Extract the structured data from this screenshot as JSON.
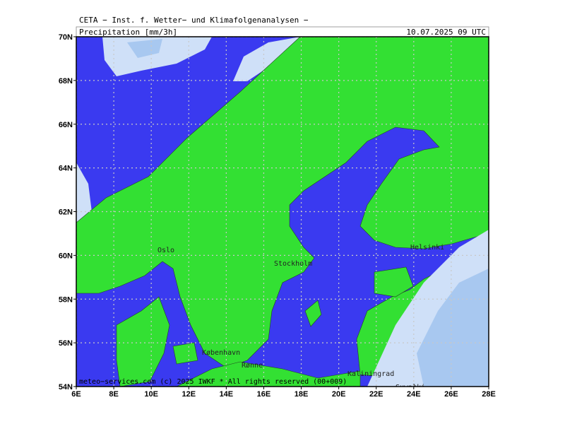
{
  "header": {
    "title": "CETA − Inst. f. Wetter− und Klimafolgenanalysen −",
    "parameter": "Precipitation [mm/3h]",
    "valid_time": "10.07.2025 09 UTC"
  },
  "map": {
    "lat_ticks": [
      {
        "value": 54,
        "label": "54N"
      },
      {
        "value": 56,
        "label": "56N"
      },
      {
        "value": 58,
        "label": "58N"
      },
      {
        "value": 60,
        "label": "60N"
      },
      {
        "value": 62,
        "label": "62N"
      },
      {
        "value": 64,
        "label": "64N"
      },
      {
        "value": 66,
        "label": "66N"
      },
      {
        "value": 68,
        "label": "68N"
      },
      {
        "value": 70,
        "label": "70N"
      }
    ],
    "lon_ticks": [
      {
        "value": 6,
        "label": "6E"
      },
      {
        "value": 8,
        "label": "8E"
      },
      {
        "value": 10,
        "label": "10E"
      },
      {
        "value": 12,
        "label": "12E"
      },
      {
        "value": 14,
        "label": "14E"
      },
      {
        "value": 16,
        "label": "16E"
      },
      {
        "value": 18,
        "label": "18E"
      },
      {
        "value": 20,
        "label": "20E"
      },
      {
        "value": 22,
        "label": "22E"
      },
      {
        "value": 24,
        "label": "24E"
      },
      {
        "value": 26,
        "label": "26E"
      },
      {
        "value": 28,
        "label": "28E"
      }
    ],
    "cities": [
      "Oslo",
      "Stockholm",
      "Helsinki",
      "København",
      "Rønne",
      "Kaliningrad",
      "Suwałki"
    ],
    "credit": "meteo−services.com (c) 2025 IWKF * All rights reserved (00+009)"
  }
}
